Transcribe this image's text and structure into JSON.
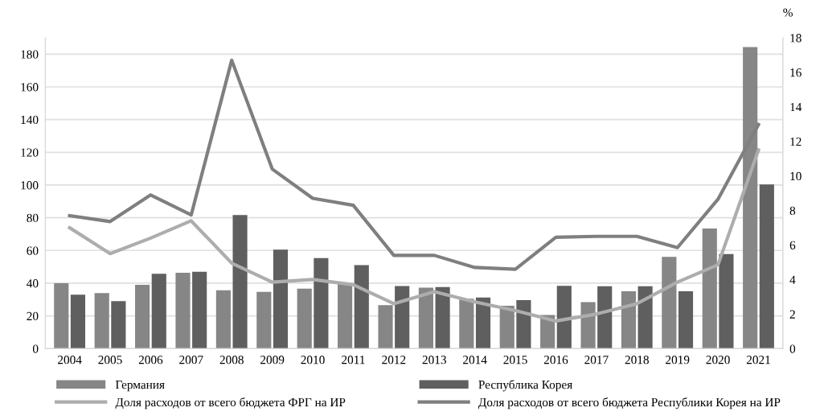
{
  "chart_data": {
    "type": "bar",
    "categories": [
      "2004",
      "2005",
      "2006",
      "2007",
      "2008",
      "2009",
      "2010",
      "2011",
      "2012",
      "2013",
      "2014",
      "2015",
      "2016",
      "2017",
      "2018",
      "2019",
      "2020",
      "2021"
    ],
    "y2label": "%",
    "ylim": [
      0,
      190
    ],
    "yticks": [
      0,
      20,
      40,
      60,
      80,
      100,
      120,
      140,
      160,
      180
    ],
    "y2lim": [
      0,
      18
    ],
    "y2ticks": [
      0,
      2,
      4,
      6,
      8,
      10,
      12,
      14,
      16,
      18
    ],
    "grid": "y",
    "legend": "bottom",
    "series": [
      {
        "name": "Германия",
        "color": "#868686",
        "values": [
          40,
          34,
          39,
          46.4,
          35.7,
          34.7,
          36.7,
          39.8,
          26.6,
          37.3,
          30.5,
          26.2,
          20.6,
          28.4,
          35,
          56.1,
          73.4,
          184.3
        ]
      },
      {
        "name": "Республика Корея",
        "color": "#5f5f5f",
        "values": [
          32.9,
          29,
          45.7,
          47,
          81.6,
          60.5,
          55.4,
          51,
          38.2,
          37.6,
          31.2,
          29.7,
          38.4,
          38.1,
          38.1,
          35,
          57.8,
          100.3
        ]
      },
      {
        "name": "Доля расходов от всего бюджета ФРГ на ИР",
        "type": "line",
        "axis": "y2",
        "color": "#adadad",
        "values": [
          7.0,
          5.5,
          6.4,
          7.4,
          4.95,
          3.85,
          4.0,
          3.7,
          2.6,
          3.3,
          2.7,
          2.2,
          1.6,
          2.0,
          2.6,
          3.85,
          4.85,
          11.5
        ]
      },
      {
        "name": "Доля расходов от всего бюджета Республики Корея на ИР",
        "type": "line",
        "axis": "y2",
        "color": "#7f7f7f",
        "values": [
          7.7,
          7.36,
          8.9,
          7.74,
          16.7,
          10.4,
          8.7,
          8.3,
          5.4,
          5.4,
          4.7,
          4.6,
          6.45,
          6.5,
          6.5,
          5.85,
          8.65,
          12.97
        ]
      }
    ]
  }
}
